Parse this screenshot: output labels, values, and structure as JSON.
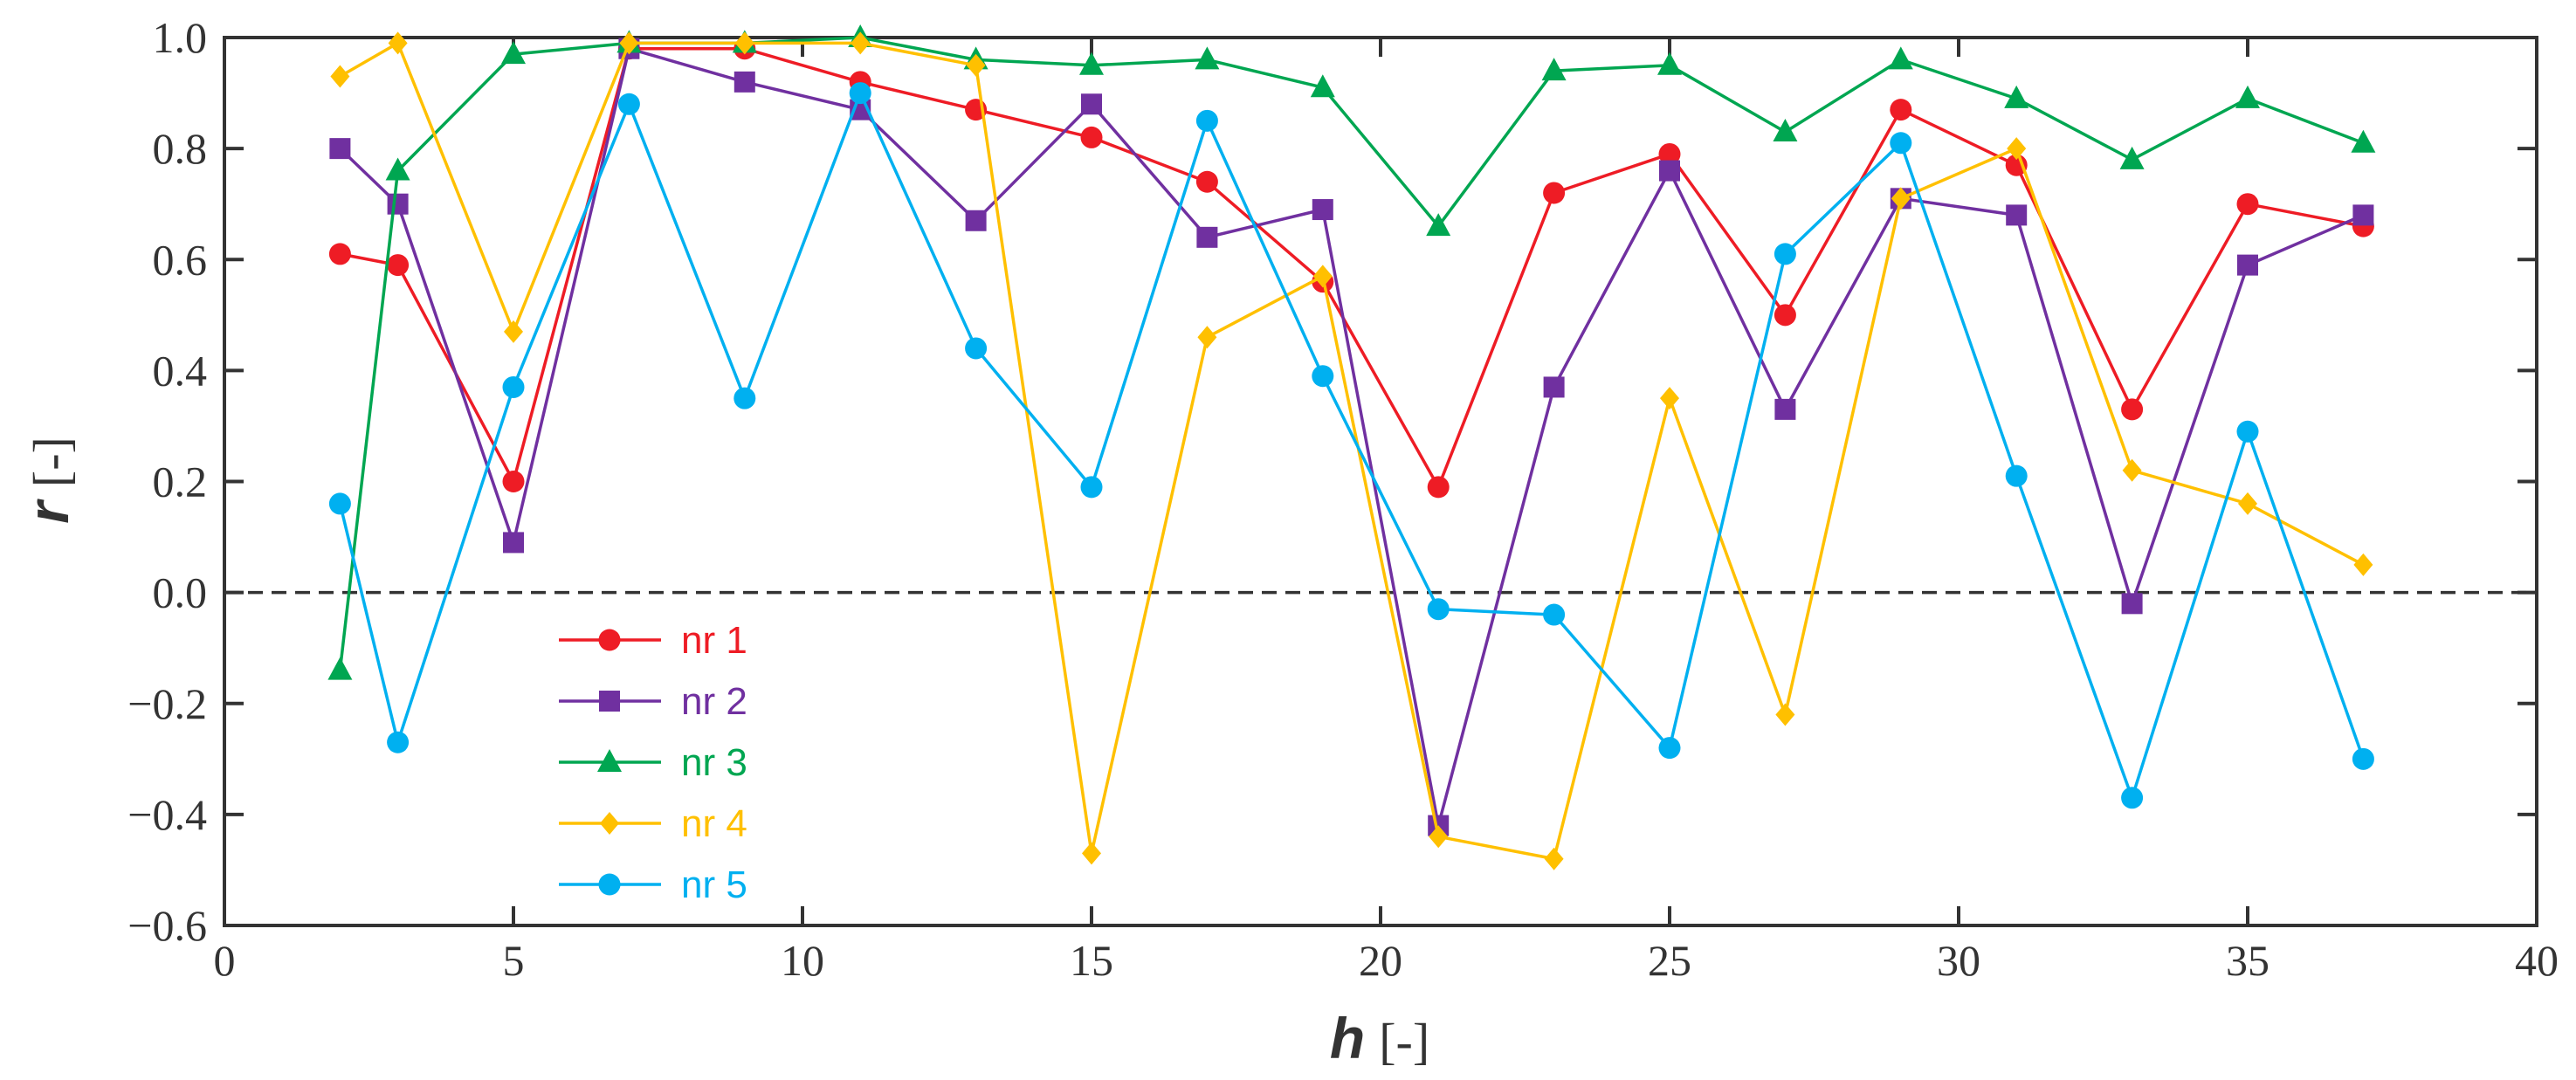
{
  "chart_data": {
    "type": "line",
    "title": "",
    "xlabel": {
      "symbol": "h",
      "unit": "[-]"
    },
    "ylabel": {
      "symbol": "r",
      "unit": "[-]"
    },
    "xlim": [
      0,
      40
    ],
    "ylim": [
      -0.6,
      1.0
    ],
    "xticks": [
      0,
      5,
      10,
      15,
      20,
      25,
      30,
      35,
      40
    ],
    "xtick_labels": [
      "0",
      "5",
      "10",
      "15",
      "20",
      "25",
      "30",
      "35",
      "40"
    ],
    "yticks": [
      -0.6,
      -0.4,
      -0.2,
      0.0,
      0.2,
      0.4,
      0.6,
      0.8,
      1.0
    ],
    "ytick_labels": [
      "−0.6",
      "−0.4",
      "−0.2",
      "0.0",
      "0.2",
      "0.4",
      "0.6",
      "0.8",
      "1.0"
    ],
    "reference_line": {
      "y": 0.0,
      "style": "dashed"
    },
    "grid": false,
    "legend_position": "bottom-left",
    "series": [
      {
        "name": "nr 1",
        "color": "#ee1c25",
        "marker": "circle",
        "x": [
          2,
          3,
          5,
          7,
          9,
          11,
          13,
          15,
          17,
          19,
          21,
          23,
          25,
          27,
          29,
          31,
          33,
          35,
          37
        ],
        "y": [
          0.61,
          0.59,
          0.2,
          0.98,
          0.98,
          0.92,
          0.87,
          0.82,
          0.74,
          0.56,
          0.19,
          0.72,
          0.79,
          0.5,
          0.87,
          0.77,
          0.33,
          0.7,
          0.66
        ]
      },
      {
        "name": "nr 2",
        "color": "#7030a0",
        "marker": "square",
        "x": [
          2,
          3,
          5,
          7,
          9,
          11,
          13,
          15,
          17,
          19,
          21,
          23,
          25,
          27,
          29,
          31,
          33,
          35,
          37
        ],
        "y": [
          0.8,
          0.7,
          0.09,
          0.98,
          0.92,
          0.87,
          0.67,
          0.88,
          0.64,
          0.69,
          -0.42,
          0.37,
          0.76,
          0.33,
          0.71,
          0.68,
          -0.02,
          0.59,
          0.68
        ]
      },
      {
        "name": "nr 3",
        "color": "#00a651",
        "marker": "triangle",
        "x": [
          2,
          3,
          5,
          7,
          9,
          11,
          13,
          15,
          17,
          19,
          21,
          23,
          25,
          27,
          29,
          31,
          33,
          35,
          37
        ],
        "y": [
          -0.14,
          0.76,
          0.97,
          0.99,
          0.99,
          1.0,
          0.96,
          0.95,
          0.96,
          0.91,
          0.66,
          0.94,
          0.95,
          0.83,
          0.96,
          0.89,
          0.78,
          0.89,
          0.81
        ]
      },
      {
        "name": "nr 4",
        "color": "#ffc000",
        "marker": "diamond",
        "x": [
          2,
          3,
          5,
          7,
          9,
          11,
          13,
          15,
          17,
          19,
          21,
          23,
          25,
          27,
          29,
          31,
          33,
          35,
          37
        ],
        "y": [
          0.93,
          0.99,
          0.47,
          0.99,
          0.99,
          0.99,
          0.95,
          -0.47,
          0.46,
          0.57,
          -0.44,
          -0.48,
          0.35,
          -0.22,
          0.71,
          0.8,
          0.22,
          0.16,
          0.05
        ]
      },
      {
        "name": "nr 5",
        "color": "#00b0f0",
        "marker": "circle",
        "x": [
          2,
          3,
          5,
          7,
          9,
          11,
          13,
          15,
          17,
          19,
          21,
          23,
          25,
          27,
          29,
          31,
          33,
          35,
          37
        ],
        "y": [
          0.16,
          -0.27,
          0.37,
          0.88,
          0.35,
          0.9,
          0.44,
          0.19,
          0.85,
          0.39,
          -0.03,
          -0.04,
          -0.28,
          0.61,
          0.81,
          0.21,
          -0.37,
          0.29,
          -0.3
        ]
      }
    ]
  }
}
